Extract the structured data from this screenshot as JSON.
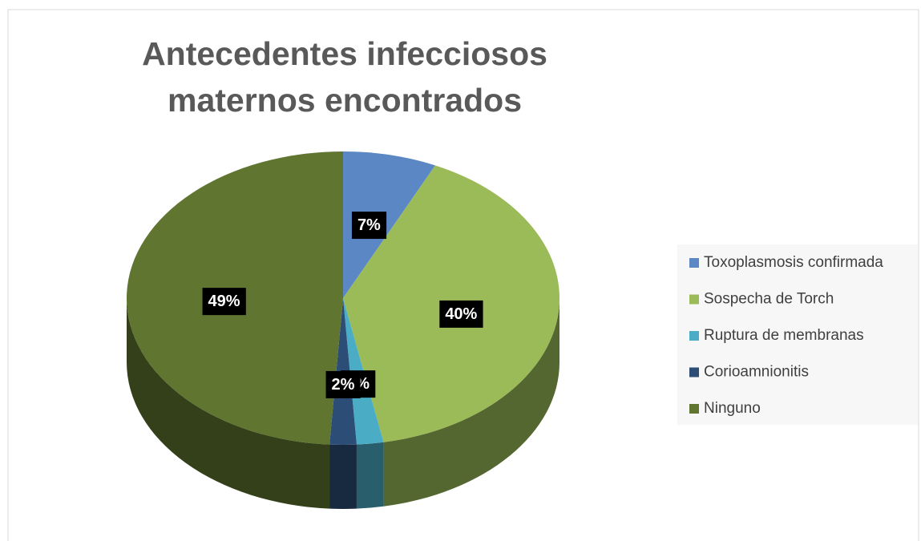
{
  "chart_data": {
    "type": "pie3d",
    "title": "Antecedentes infecciosos maternos encontrados",
    "categories": [
      "Toxoplasmosis confirmada",
      "Sospecha de Torch",
      "Ruptura de membranas",
      "Corioamnionitis",
      "Ninguno"
    ],
    "values": [
      7,
      40,
      2,
      2,
      49
    ],
    "value_labels": [
      "7%",
      "40%",
      "2%",
      "2%",
      "49%"
    ],
    "colors": [
      "#5b87c5",
      "#9bbb59",
      "#4bacc6",
      "#2c4d75",
      "#5f7530"
    ],
    "legend": "right"
  }
}
